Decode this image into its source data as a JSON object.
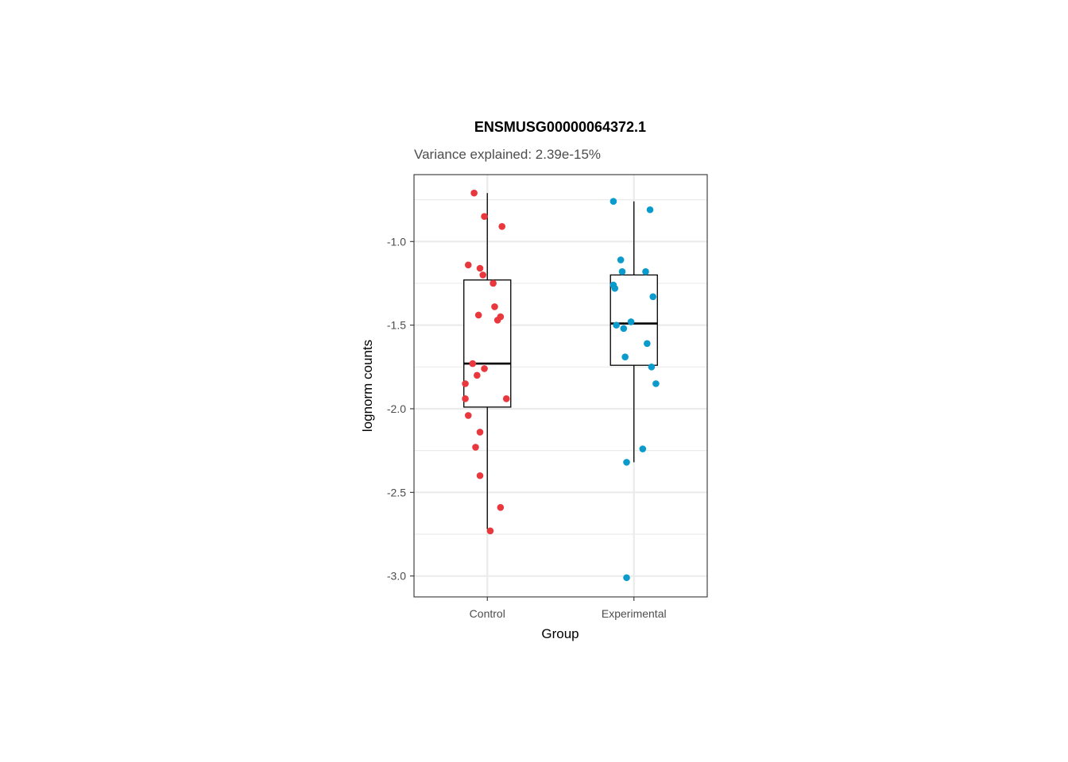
{
  "chart_data": {
    "type": "boxplot",
    "title": "ENSMUSG00000064372.1",
    "subtitle": "Variance explained: 2.39e-15%",
    "xlabel": "Group",
    "ylabel": "lognorm counts",
    "categories": [
      "Control",
      "Experimental"
    ],
    "ylim": [
      -3.125,
      -0.6
    ],
    "yticks": [
      -3.0,
      -2.5,
      -2.0,
      -1.5,
      -1.0
    ],
    "ytick_labels": [
      "-3.0",
      "-2.5",
      "-2.0",
      "-1.5",
      "-1.0"
    ],
    "grid": true,
    "legend": "none",
    "colors": {
      "Control": "#e8383d",
      "Experimental": "#0a9acb"
    },
    "boxes": [
      {
        "group": "Control",
        "q1": -1.99,
        "median": -1.73,
        "q3": -1.23,
        "whisker_low": -2.72,
        "whisker_high": -0.71
      },
      {
        "group": "Experimental",
        "q1": -1.74,
        "median": -1.49,
        "q3": -1.2,
        "whisker_low": -2.32,
        "whisker_high": -0.76
      }
    ],
    "points": [
      {
        "group": "Control",
        "jitter": -0.09,
        "y": -0.71
      },
      {
        "group": "Control",
        "jitter": -0.02,
        "y": -0.85
      },
      {
        "group": "Control",
        "jitter": 0.1,
        "y": -0.91
      },
      {
        "group": "Control",
        "jitter": -0.13,
        "y": -1.14
      },
      {
        "group": "Control",
        "jitter": -0.05,
        "y": -1.16
      },
      {
        "group": "Control",
        "jitter": -0.03,
        "y": -1.2
      },
      {
        "group": "Control",
        "jitter": 0.04,
        "y": -1.25
      },
      {
        "group": "Control",
        "jitter": 0.05,
        "y": -1.39
      },
      {
        "group": "Control",
        "jitter": -0.06,
        "y": -1.44
      },
      {
        "group": "Control",
        "jitter": 0.09,
        "y": -1.45
      },
      {
        "group": "Control",
        "jitter": 0.07,
        "y": -1.47
      },
      {
        "group": "Control",
        "jitter": -0.1,
        "y": -1.73
      },
      {
        "group": "Control",
        "jitter": -0.02,
        "y": -1.76
      },
      {
        "group": "Control",
        "jitter": -0.07,
        "y": -1.8
      },
      {
        "group": "Control",
        "jitter": -0.15,
        "y": -1.85
      },
      {
        "group": "Control",
        "jitter": -0.15,
        "y": -1.94
      },
      {
        "group": "Control",
        "jitter": 0.13,
        "y": -1.94
      },
      {
        "group": "Control",
        "jitter": -0.13,
        "y": -2.04
      },
      {
        "group": "Control",
        "jitter": -0.05,
        "y": -2.14
      },
      {
        "group": "Control",
        "jitter": -0.08,
        "y": -2.23
      },
      {
        "group": "Control",
        "jitter": -0.05,
        "y": -2.4
      },
      {
        "group": "Control",
        "jitter": 0.09,
        "y": -2.59
      },
      {
        "group": "Control",
        "jitter": 0.02,
        "y": -2.73
      },
      {
        "group": "Experimental",
        "jitter": -0.14,
        "y": -0.76
      },
      {
        "group": "Experimental",
        "jitter": 0.11,
        "y": -0.81
      },
      {
        "group": "Experimental",
        "jitter": -0.09,
        "y": -1.11
      },
      {
        "group": "Experimental",
        "jitter": -0.08,
        "y": -1.18
      },
      {
        "group": "Experimental",
        "jitter": 0.08,
        "y": -1.18
      },
      {
        "group": "Experimental",
        "jitter": -0.14,
        "y": -1.26
      },
      {
        "group": "Experimental",
        "jitter": -0.13,
        "y": -1.28
      },
      {
        "group": "Experimental",
        "jitter": 0.13,
        "y": -1.33
      },
      {
        "group": "Experimental",
        "jitter": -0.02,
        "y": -1.48
      },
      {
        "group": "Experimental",
        "jitter": -0.12,
        "y": -1.5
      },
      {
        "group": "Experimental",
        "jitter": -0.07,
        "y": -1.52
      },
      {
        "group": "Experimental",
        "jitter": 0.09,
        "y": -1.61
      },
      {
        "group": "Experimental",
        "jitter": -0.06,
        "y": -1.69
      },
      {
        "group": "Experimental",
        "jitter": 0.12,
        "y": -1.75
      },
      {
        "group": "Experimental",
        "jitter": 0.15,
        "y": -1.85
      },
      {
        "group": "Experimental",
        "jitter": 0.06,
        "y": -2.24
      },
      {
        "group": "Experimental",
        "jitter": -0.05,
        "y": -2.32
      },
      {
        "group": "Experimental",
        "jitter": -0.05,
        "y": -3.01
      }
    ]
  }
}
